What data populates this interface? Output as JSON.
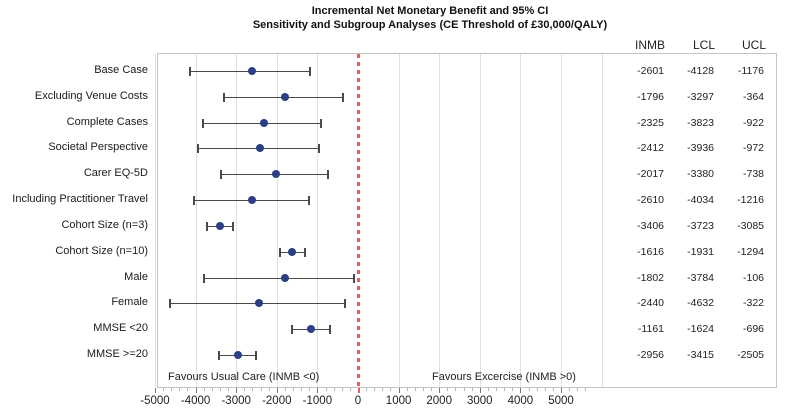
{
  "title": {
    "line1": "Incremental Net Monetary Benefit and 95% CI",
    "line2": "Sensitivity and Subgroup Analyses (CE Threshold of £30,000/QALY)"
  },
  "columns": {
    "inmb": "INMB",
    "lcl": "LCL",
    "ucl": "UCL"
  },
  "chart_data": {
    "type": "scatter",
    "subtype": "forest-plot",
    "title": "Incremental Net Monetary Benefit and 95% CI",
    "subtitle": "Sensitivity and Subgroup Analyses (CE Threshold of £30,000/QALY)",
    "xlabel": "",
    "ylabel": "",
    "xlim": [
      -5000,
      5000
    ],
    "xticks": [
      -5000,
      -4000,
      -3000,
      -2000,
      -1000,
      0,
      1000,
      2000,
      3000,
      4000,
      5000
    ],
    "grid": true,
    "zero_reference_line": 0,
    "rows": [
      {
        "label": "Base Case",
        "inmb": -2601,
        "lcl": -4128,
        "ucl": -1176
      },
      {
        "label": "Excluding Venue Costs",
        "inmb": -1796,
        "lcl": -3297,
        "ucl": -364
      },
      {
        "label": "Complete Cases",
        "inmb": -2325,
        "lcl": -3823,
        "ucl": -922
      },
      {
        "label": "Societal Perspective",
        "inmb": -2412,
        "lcl": -3936,
        "ucl": -972
      },
      {
        "label": "Carer EQ-5D",
        "inmb": -2017,
        "lcl": -3380,
        "ucl": -738
      },
      {
        "label": "Including Practitioner Travel",
        "inmb": -2610,
        "lcl": -4034,
        "ucl": -1216
      },
      {
        "label": "Cohort Size (n=3)",
        "inmb": -3406,
        "lcl": -3723,
        "ucl": -3085
      },
      {
        "label": "Cohort Size (n=10)",
        "inmb": -1616,
        "lcl": -1931,
        "ucl": -1294
      },
      {
        "label": "Male",
        "inmb": -1802,
        "lcl": -3784,
        "ucl": -106
      },
      {
        "label": "Female",
        "inmb": -2440,
        "lcl": -4632,
        "ucl": -322
      },
      {
        "label": "MMSE <20",
        "inmb": -1161,
        "lcl": -1624,
        "ucl": -696
      },
      {
        "label": "MMSE >=20",
        "inmb": -2956,
        "lcl": -3415,
        "ucl": -2505
      }
    ],
    "annotations": {
      "left": "Favours Usual Care (INMB <0)",
      "right": "Favours Excercise (INMB >0)"
    }
  },
  "colors": {
    "marker": "#2b3f87",
    "zero_line": "#e0635a",
    "gridline": "#e0e0e0",
    "frame": "#c4c4c4",
    "whisker": "#4a4a4a"
  }
}
